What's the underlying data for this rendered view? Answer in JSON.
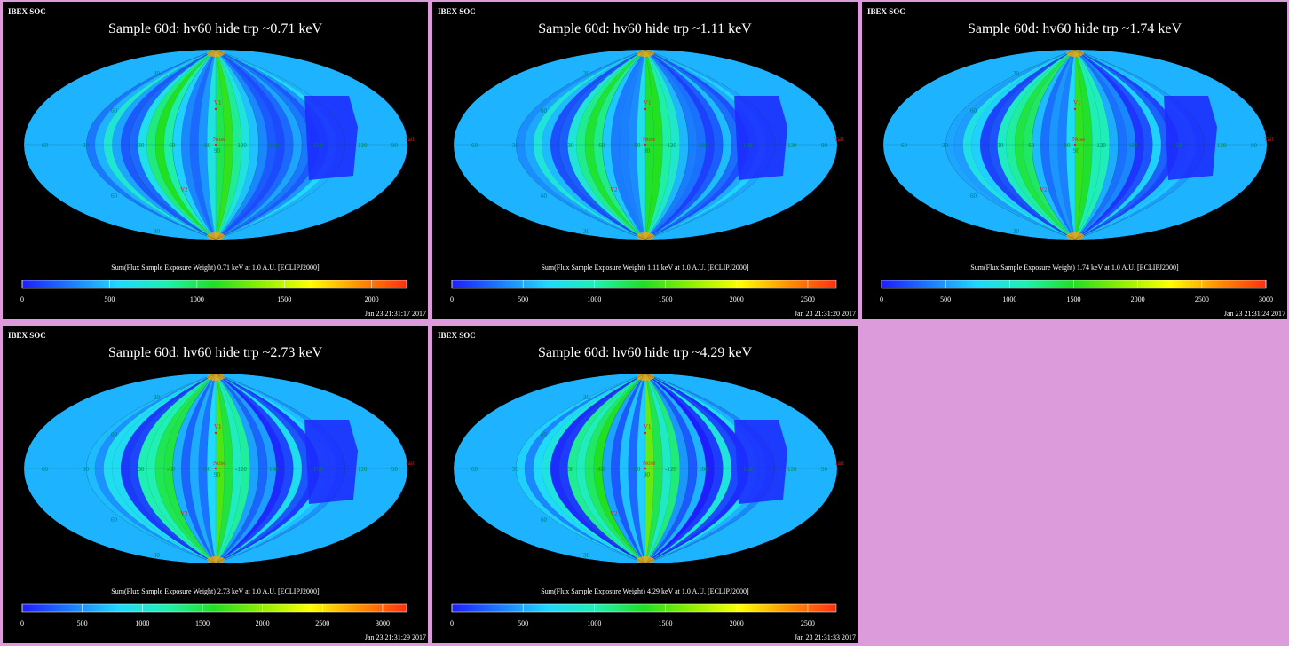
{
  "panels": [
    {
      "header": "IBEX SOC",
      "title": "Sample 60d: hv60 hide trp ~0.71 keV",
      "subtitle": "Sum(Flux Sample Exposure Weight)  0.71 keV at 1.0 A.U. [ECLIPJ2000]",
      "timestamp": "Jan 23 21:31:17 2017",
      "colorbar_ticks": [
        "0",
        "500",
        "1000",
        "1500",
        "2000"
      ],
      "colorbar_max": 2200
    },
    {
      "header": "IBEX SOC",
      "title": "Sample 60d: hv60 hide trp ~1.11 keV",
      "subtitle": "Sum(Flux Sample Exposure Weight)  1.11 keV at 1.0 A.U. [ECLIPJ2000]",
      "timestamp": "Jan 23 21:31:20 2017",
      "colorbar_ticks": [
        "0",
        "500",
        "1000",
        "1500",
        "2000",
        "2500"
      ],
      "colorbar_max": 2700
    },
    {
      "header": "IBEX SOC",
      "title": "Sample 60d: hv60 hide trp ~1.74 keV",
      "subtitle": "Sum(Flux Sample Exposure Weight)  1.74 keV at 1.0 A.U. [ECLIPJ2000]",
      "timestamp": "Jan 23 21:31:24 2017",
      "colorbar_ticks": [
        "0",
        "500",
        "1000",
        "1500",
        "2000",
        "2500",
        "3000"
      ],
      "colorbar_max": 3000
    },
    {
      "header": "IBEX SOC",
      "title": "Sample 60d: hv60 hide trp ~2.73 keV",
      "subtitle": "Sum(Flux Sample Exposure Weight)  2.73 keV at 1.0 A.U. [ECLIPJ2000]",
      "timestamp": "Jan 23 21:31:29 2017",
      "colorbar_ticks": [
        "0",
        "500",
        "1000",
        "1500",
        "2000",
        "2500",
        "3000"
      ],
      "colorbar_max": 3200
    },
    {
      "header": "IBEX SOC",
      "title": "Sample 60d: hv60 hide trp ~4.29 keV",
      "subtitle": "Sum(Flux Sample Exposure Weight)  4.29 keV at 1.0 A.U. [ECLIPJ2000]",
      "timestamp": "Jan 23 21:31:33 2017",
      "colorbar_ticks": [
        "0",
        "500",
        "1000",
        "1500",
        "2000",
        "2500"
      ],
      "colorbar_max": 2700
    }
  ],
  "map_labels": {
    "v1": "V1",
    "v2": "V2",
    "nose": "Nose",
    "tail": "Tail",
    "lon_ticks": [
      "60",
      "30",
      "-30",
      "-60",
      "-90",
      "-120",
      "180",
      "150",
      "120",
      "90"
    ],
    "lat_ticks": [
      "30",
      "60",
      "90",
      "60",
      "30"
    ]
  },
  "chart_data": {
    "type": "heatmap",
    "projection": "Mollweide sky map",
    "colorscale": [
      "#1e1eff",
      "#1a7cff",
      "#20d8ff",
      "#20f0b0",
      "#20e020",
      "#90f000",
      "#ffff00",
      "#ff9000",
      "#ff3010"
    ],
    "panels": [
      {
        "energy_keV": "0.71",
        "ticks": [
          0,
          500,
          1000,
          1500,
          2000
        ],
        "max": 2200
      },
      {
        "energy_keV": "1.11",
        "ticks": [
          0,
          500,
          1000,
          1500,
          2000,
          2500
        ],
        "max": 2700
      },
      {
        "energy_keV": "1.74",
        "ticks": [
          0,
          500,
          1000,
          1500,
          2000,
          2500,
          3000
        ],
        "max": 3000
      },
      {
        "energy_keV": "2.73",
        "ticks": [
          0,
          500,
          1000,
          1500,
          2000,
          2500,
          3000
        ],
        "max": 3200
      },
      {
        "energy_keV": "4.29",
        "ticks": [
          0,
          500,
          1000,
          1500,
          2000,
          2500
        ],
        "max": 2700
      }
    ]
  }
}
